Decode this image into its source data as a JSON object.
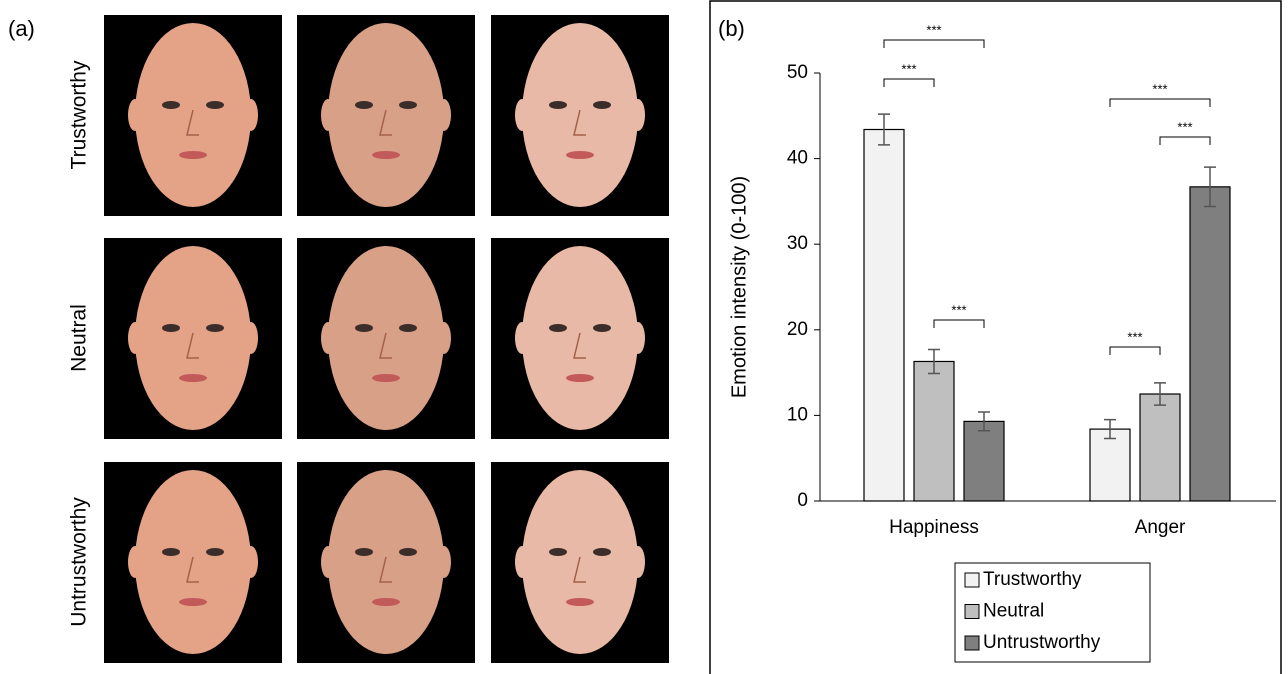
{
  "panel_a": {
    "label": "(a)",
    "rows": [
      "Trustworthy",
      "Neutral",
      "Untrustworthy"
    ]
  },
  "chart_data": {
    "type": "bar",
    "label": "(b)",
    "y_label": "Emotion intensity (0-100)",
    "categories": [
      "Happiness",
      "Anger"
    ],
    "series": [
      {
        "name": "Trustworthy",
        "color": "#f2f2f2",
        "values": [
          43.4,
          8.4
        ],
        "errors": [
          1.8,
          1.1
        ]
      },
      {
        "name": "Neutral",
        "color": "#bfbfbf",
        "values": [
          16.3,
          12.5
        ],
        "errors": [
          1.4,
          1.3
        ]
      },
      {
        "name": "Untrustworthy",
        "color": "#7f7f7f",
        "values": [
          9.3,
          36.7
        ],
        "errors": [
          1.1,
          2.3
        ]
      }
    ],
    "ylim": [
      0,
      50
    ],
    "yticks": [
      0,
      10,
      20,
      30,
      40,
      50
    ],
    "annotations": [
      "***",
      "***",
      "***",
      "***",
      "***",
      "***"
    ]
  }
}
